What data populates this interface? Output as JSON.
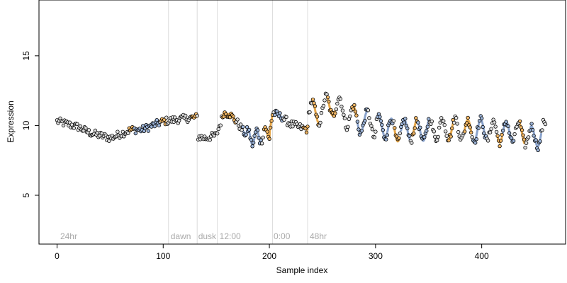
{
  "chart_data": {
    "type": "scatter",
    "xlabel": "Sample index",
    "ylabel": "Expression",
    "xlim": [
      -17,
      479
    ],
    "ylim": [
      1.5,
      19
    ],
    "xticks": [
      0,
      100,
      200,
      300,
      400
    ],
    "yticks": [
      5,
      10,
      15
    ],
    "grid": false,
    "colors": {
      "point_fill_base": "#dddddd",
      "point_fill_orange": "#f2b765",
      "point_fill_blue": "#9cb4d8",
      "line_blue": "#8aa3cc",
      "line_orange": "#e8a84a",
      "separator": "#dcdcdc",
      "annotation": "#aaaaaa"
    },
    "separators": [
      105,
      132,
      151,
      203,
      236
    ],
    "annotations": [
      {
        "x": 3,
        "label": "24hr"
      },
      {
        "x": 107,
        "label": "dawn"
      },
      {
        "x": 133,
        "label": "dusk"
      },
      {
        "x": 153,
        "label": "12:00"
      },
      {
        "x": 204,
        "label": "0:00"
      },
      {
        "x": 238,
        "label": "48hr"
      }
    ],
    "series": [
      {
        "segments": [
          {
            "x_start": 0,
            "x_end": 132,
            "points": [
              [
                0,
                10.3
              ],
              [
                10,
                10.1
              ],
              [
                20,
                9.9
              ],
              [
                30,
                9.5
              ],
              [
                40,
                9.3
              ],
              [
                50,
                9.1
              ],
              [
                60,
                9.4
              ],
              [
                70,
                9.7
              ],
              [
                80,
                9.7
              ],
              [
                90,
                10.0
              ],
              [
                100,
                10.3
              ],
              [
                110,
                10.4
              ],
              [
                120,
                10.5
              ],
              [
                132,
                10.6
              ]
            ]
          },
          {
            "x_start": 133,
            "x_end": 203,
            "points": [
              [
                133,
                9.2
              ],
              [
                140,
                9.1
              ],
              [
                150,
                9.3
              ],
              [
                157,
                10.9
              ],
              [
                163,
                10.8
              ],
              [
                170,
                10.2
              ],
              [
                178,
                9.3
              ],
              [
                185,
                9.1
              ],
              [
                192,
                9.3
              ],
              [
                200,
                9.5
              ],
              [
                203,
                10.8
              ]
            ]
          },
          {
            "x_start": 204,
            "x_end": 236,
            "points": [
              [
                204,
                10.9
              ],
              [
                212,
                10.6
              ],
              [
                220,
                10.1
              ],
              [
                228,
                9.9
              ],
              [
                236,
                9.7
              ]
            ]
          },
          {
            "x_start": 237,
            "x_end": 460,
            "points": [
              [
                237,
                10.8
              ],
              [
                250,
                11.1
              ],
              [
                260,
                11.6
              ],
              [
                270,
                10.9
              ],
              [
                280,
                10.5
              ],
              [
                290,
                10.2
              ],
              [
                300,
                10.0
              ],
              [
                310,
                9.9
              ],
              [
                320,
                9.6
              ],
              [
                330,
                9.7
              ],
              [
                340,
                9.6
              ],
              [
                350,
                9.7
              ],
              [
                360,
                9.8
              ],
              [
                370,
                9.8
              ],
              [
                380,
                9.8
              ],
              [
                390,
                9.6
              ],
              [
                400,
                9.7
              ],
              [
                410,
                9.6
              ],
              [
                420,
                9.5
              ],
              [
                430,
                9.6
              ],
              [
                440,
                9.4
              ],
              [
                450,
                9.1
              ],
              [
                460,
                9.6
              ]
            ]
          }
        ],
        "oscillation": [
          {
            "x_start": 178,
            "x_end": 200,
            "amplitude": 0.5,
            "period": 8
          },
          {
            "x_start": 237,
            "x_end": 300,
            "amplitude": 0.85,
            "period": 13
          },
          {
            "x_start": 300,
            "x_end": 460,
            "amplitude": 0.75,
            "period": 12
          }
        ],
        "orange_windows": [
          [
            68,
            72
          ],
          [
            98,
            102
          ],
          [
            127,
            131
          ],
          [
            156,
            168
          ],
          [
            195,
            203
          ],
          [
            232,
            236
          ],
          [
            241,
            246
          ],
          [
            255,
            262
          ],
          [
            278,
            282
          ],
          [
            318,
            322
          ],
          [
            335,
            339
          ],
          [
            369,
            373
          ],
          [
            384,
            390
          ],
          [
            415,
            419
          ],
          [
            436,
            440
          ]
        ],
        "blue_windows": [
          [
            73,
            96
          ],
          [
            175,
            192
          ],
          [
            205,
            212
          ],
          [
            283,
            292
          ],
          [
            302,
            316
          ],
          [
            324,
            332
          ],
          [
            340,
            350
          ],
          [
            392,
            404
          ],
          [
            420,
            430
          ],
          [
            446,
            456
          ]
        ]
      }
    ]
  }
}
